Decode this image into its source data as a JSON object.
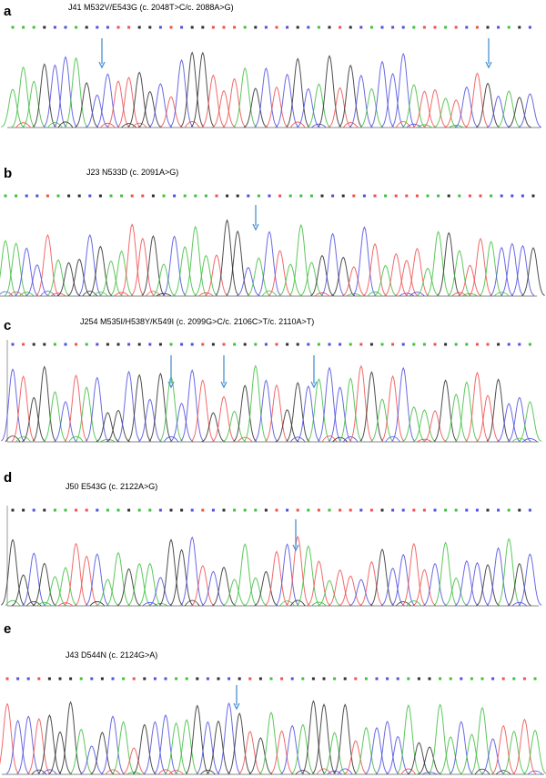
{
  "panels": [
    {
      "label": "a",
      "title": "J41  M532V/E543G (c. 2048T>C/c. 2088A>G)"
    },
    {
      "label": "b",
      "title": "J23  N533D (c. 2091A>G)"
    },
    {
      "label": "c",
      "title": "J254  M535I/H538Y/K549I (c. 2099G>C/c. 2106C>T/c. 2110A>T)"
    },
    {
      "label": "d",
      "title": "J50  E543G (c. 2122A>G)"
    },
    {
      "label": "e",
      "title": "J43  D544N (c. 2124G>A)"
    }
  ]
}
